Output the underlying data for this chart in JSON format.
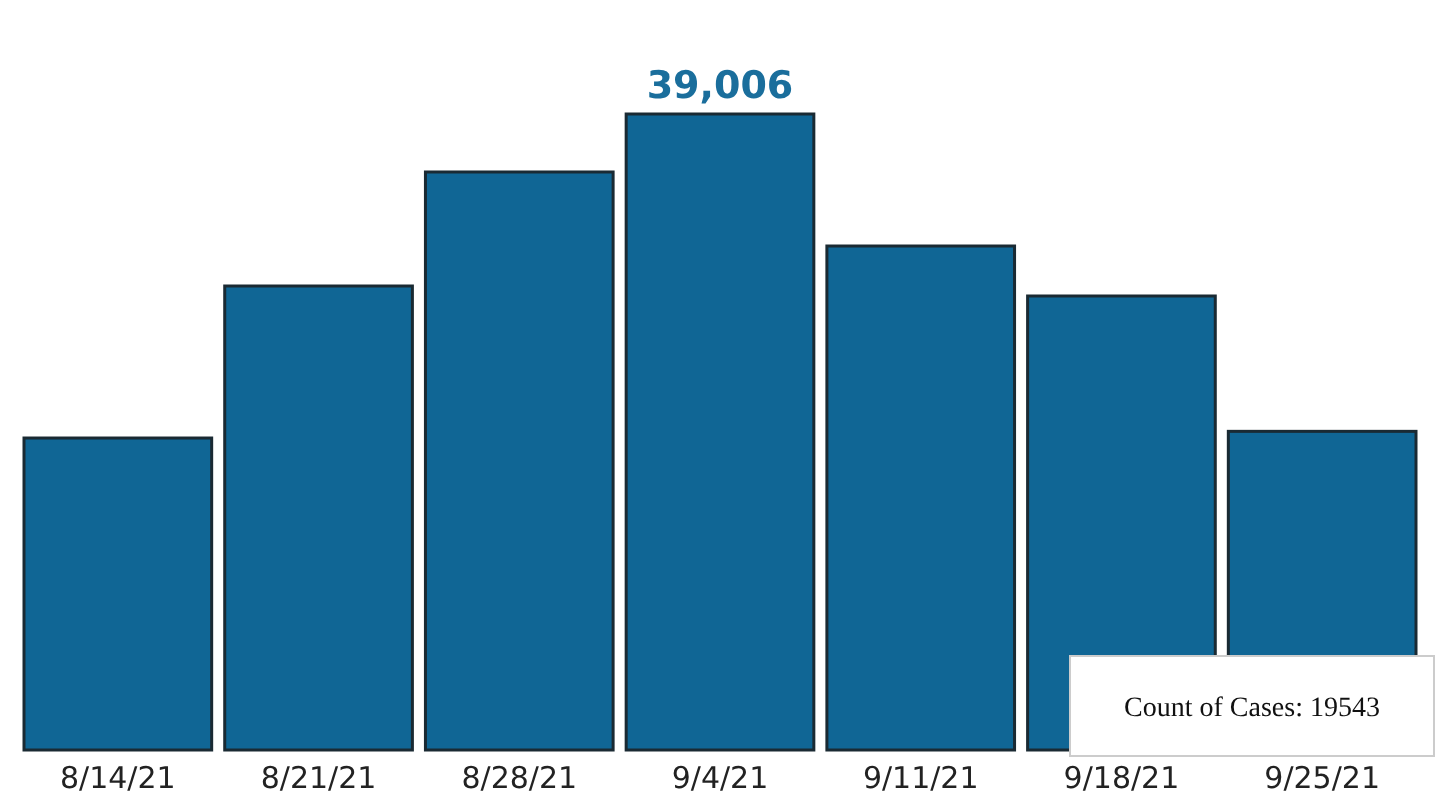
{
  "chart_data": {
    "type": "bar",
    "categories": [
      "8/14/21",
      "8/21/21",
      "8/28/21",
      "9/4/21",
      "9/11/21",
      "9/18/21",
      "9/25/21"
    ],
    "values": [
      19134,
      28457,
      35449,
      39006,
      30910,
      27844,
      19543
    ],
    "value_labels": [
      null,
      null,
      null,
      "39,006",
      null,
      null,
      null
    ],
    "color": "#106695",
    "annotations": [
      "Count of Cases: 19543"
    ]
  }
}
